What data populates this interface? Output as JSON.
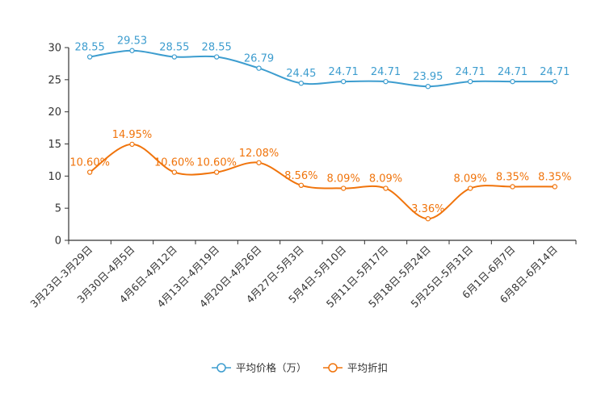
{
  "chart_data": {
    "type": "line",
    "title": "",
    "xlabel": "",
    "ylabel": "",
    "ylim": [
      0,
      30
    ],
    "yticks": [
      0,
      5,
      10,
      15,
      20,
      25,
      30
    ],
    "categories": [
      "3月23日-3月29日",
      "3月30日-4月5日",
      "4月6日-4月12日",
      "4月13日-4月19日",
      "4月20日-4月26日",
      "4月27日-5月3日",
      "5月4日-5月10日",
      "5月11日-5月17日",
      "5月18日-5月24日",
      "5月25日-5月31日",
      "6月1日-6月7日",
      "6月8日-6月14日"
    ],
    "series": [
      {
        "name": "平均价格（万）",
        "color": "#3d9dcf",
        "values": [
          28.55,
          29.53,
          28.55,
          28.55,
          26.79,
          24.45,
          24.71,
          24.71,
          23.95,
          24.71,
          24.71,
          24.71
        ],
        "labels": [
          "28.55",
          "29.53",
          "28.55",
          "28.55",
          "26.79",
          "24.45",
          "24.71",
          "24.71",
          "23.95",
          "24.71",
          "24.71",
          "24.71"
        ]
      },
      {
        "name": "平均折扣",
        "color": "#f0740c",
        "values": [
          10.6,
          14.95,
          10.6,
          10.6,
          12.08,
          8.56,
          8.09,
          8.09,
          3.36,
          8.09,
          8.35,
          8.35
        ],
        "labels": [
          "10.60%",
          "14.95%",
          "10.60%",
          "10.60%",
          "12.08%",
          "8.56%",
          "8.09%",
          "8.09%",
          "3.36%",
          "8.09%",
          "8.35%",
          "8.35%"
        ]
      }
    ],
    "legend_position": "bottom-center"
  }
}
